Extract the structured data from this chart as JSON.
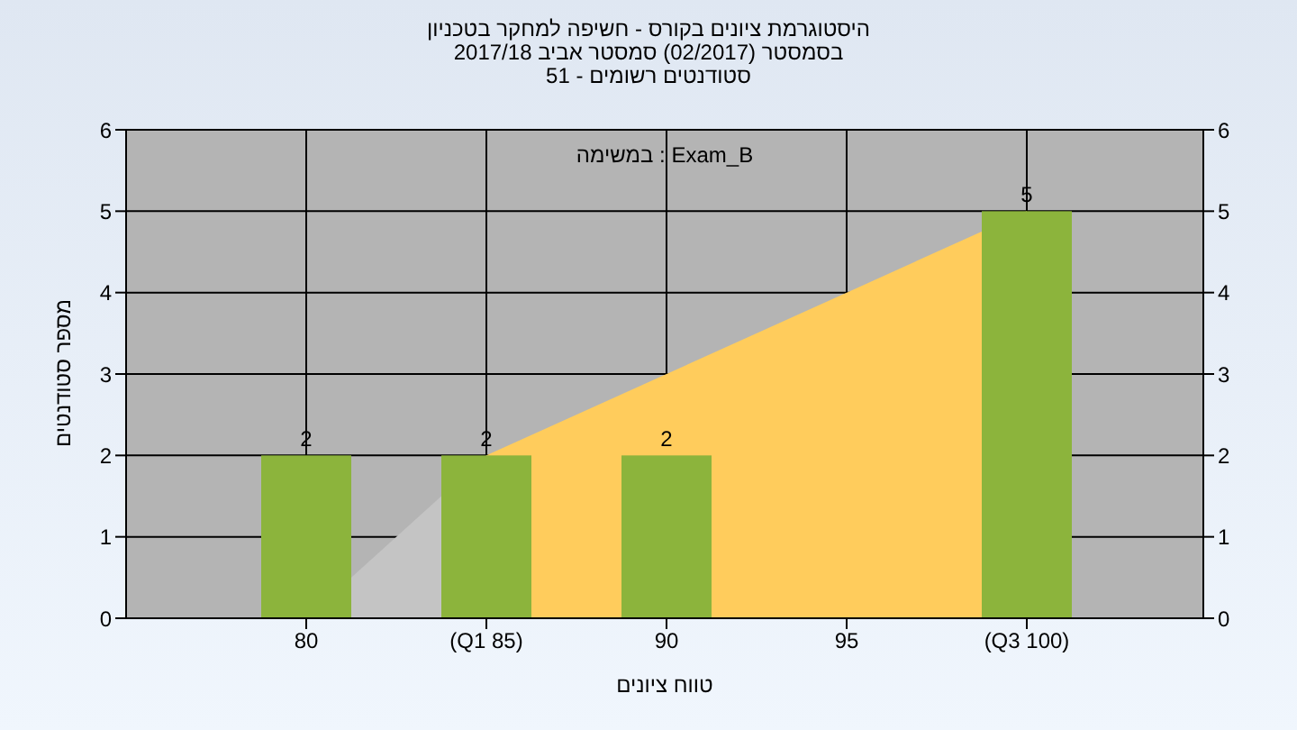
{
  "chart_data": {
    "type": "bar",
    "title": "היסטוגרמת ציונים בקורס - חשיפה למחקר בטכניון",
    "subtitle": "בסמסטר  (02/2017)  סמסטר אביב 2017/18\nסטודנטים רשומים - 51",
    "xlabel": "טווח ציונים",
    "ylabel": "מספר סטודנטים",
    "annotations": [
      "Exam_B : במשימה"
    ],
    "categories": [
      "80",
      "(Q1 85)",
      "90",
      "95",
      "(Q3 100)"
    ],
    "series": [
      {
        "type": "area",
        "color": "#c4c4c4",
        "values": [
          0,
          2,
          null,
          null,
          null
        ]
      },
      {
        "type": "area",
        "color": "#ffcc5c",
        "values": [
          null,
          2,
          3,
          4,
          5
        ]
      },
      {
        "color": "#8cb43c",
        "values": [
          2,
          2,
          2,
          0,
          5
        ],
        "value_labels": [
          "2",
          "2",
          "2",
          null,
          "5"
        ]
      }
    ],
    "ylim": [
      0,
      6
    ],
    "yticks": [
      0,
      1,
      2,
      3,
      4,
      5,
      6
    ],
    "y2lim": [
      0,
      6
    ],
    "y2ticks": [
      0,
      1,
      2,
      3,
      4,
      5,
      6
    ],
    "grid": true,
    "legend": false
  }
}
